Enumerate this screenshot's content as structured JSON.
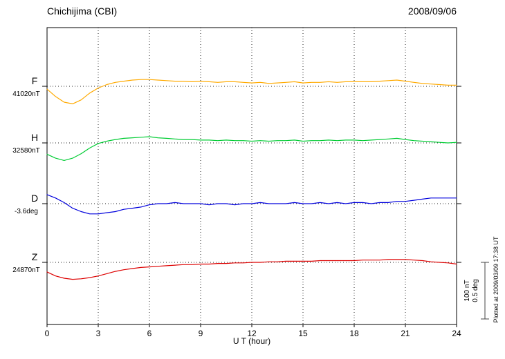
{
  "chart_data": {
    "type": "line",
    "title": "Chichijima (CBI)",
    "date_label": "2008/09/06",
    "xlabel": "U T (hour)",
    "x_ticks": [
      0,
      3,
      6,
      9,
      12,
      15,
      18,
      21,
      24
    ],
    "x_range": [
      0,
      24
    ],
    "x_step_hours": 0.5,
    "grid": "dotted-vertical-at-3h, dotted-baseline-per-trace",
    "scale": {
      "nT_per_div": 100,
      "deg_per_div": 0.5,
      "label_nt": "100 nT",
      "label_deg": "0.5 deg"
    },
    "plotted_note": "Plotted at 2009/03/09 17:38 UT",
    "series": [
      {
        "name": "F",
        "baseline_label": "41020nT",
        "baseline_value": 41020,
        "unit": "nT",
        "color": "#ffaa00",
        "offsets": [
          -5,
          -18,
          -28,
          -31,
          -24,
          -12,
          -3,
          3,
          7,
          9,
          11,
          12,
          12,
          11,
          10,
          9,
          9,
          8,
          9,
          8,
          7,
          8,
          8,
          7,
          6,
          7,
          5,
          6,
          7,
          8,
          6,
          7,
          7,
          8,
          7,
          8,
          8,
          8,
          8,
          9,
          10,
          11,
          9,
          7,
          5,
          4,
          3,
          2,
          2
        ]
      },
      {
        "name": "H",
        "baseline_label": "32580nT",
        "baseline_value": 32580,
        "unit": "nT",
        "color": "#00cc33",
        "offsets": [
          -20,
          -27,
          -31,
          -27,
          -19,
          -9,
          -1,
          3,
          6,
          8,
          9,
          10,
          11,
          9,
          8,
          7,
          6,
          6,
          5,
          5,
          4,
          5,
          4,
          4,
          3,
          4,
          3,
          4,
          4,
          5,
          3,
          4,
          4,
          5,
          4,
          5,
          5,
          4,
          5,
          6,
          7,
          8,
          6,
          4,
          3,
          2,
          1,
          0,
          1
        ]
      },
      {
        "name": "D",
        "baseline_label": "-3.6deg",
        "baseline_value": -3.6,
        "unit": "deg",
        "color": "#0000dd",
        "offsets": [
          0.08,
          0.05,
          0.01,
          -0.04,
          -0.07,
          -0.09,
          -0.09,
          -0.08,
          -0.07,
          -0.05,
          -0.04,
          -0.03,
          -0.01,
          0,
          0,
          0.01,
          0,
          0,
          0,
          -0.01,
          0,
          0,
          -0.01,
          0,
          0,
          0.01,
          0,
          0,
          0,
          0.01,
          0,
          0,
          0.01,
          0,
          0.01,
          0,
          0.01,
          0.01,
          0,
          0.01,
          0.01,
          0.02,
          0.02,
          0.03,
          0.04,
          0.05,
          0.05,
          0.05,
          0.05
        ]
      },
      {
        "name": "Z",
        "baseline_label": "24870nT",
        "baseline_value": 24870,
        "unit": "nT",
        "color": "#dd0000",
        "offsets": [
          -17,
          -24,
          -28,
          -30,
          -29,
          -27,
          -24,
          -20,
          -16,
          -13,
          -11,
          -9,
          -8,
          -7,
          -6,
          -5,
          -4,
          -4,
          -3,
          -3,
          -2,
          -2,
          -1,
          -1,
          0,
          0,
          1,
          1,
          2,
          2,
          2,
          2,
          3,
          3,
          3,
          3,
          3,
          4,
          4,
          4,
          5,
          5,
          5,
          4,
          3,
          1,
          0,
          -1,
          -3
        ]
      }
    ]
  }
}
